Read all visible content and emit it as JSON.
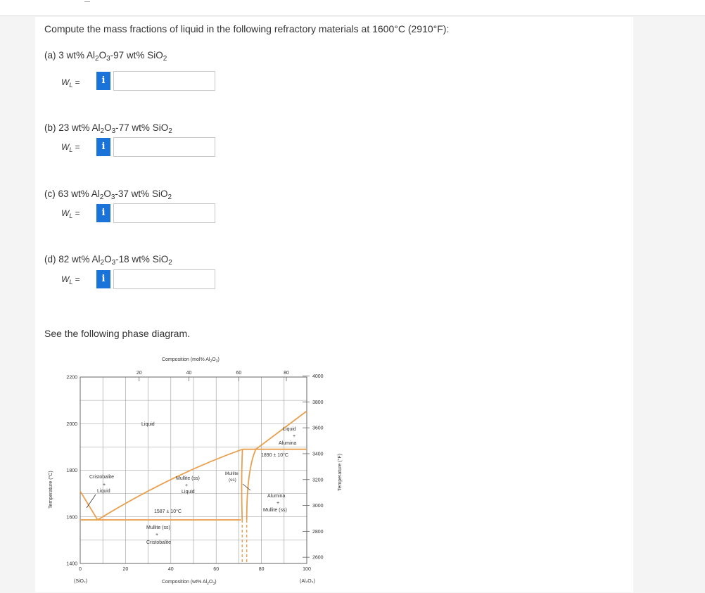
{
  "question": {
    "prompt": "Compute the mass fractions of liquid in the following refractory materials at 1600°C (2910°F):",
    "parts": [
      {
        "label": "(a) 3 wt% Al",
        "label2": "O",
        "label3": "-97 wt% SiO",
        "answer_var": "W",
        "answer_sub": "L",
        "answer_eq": " =",
        "input_value": ""
      },
      {
        "label": "(b) 23 wt% Al",
        "label2": "O",
        "label3": "-77 wt% SiO",
        "answer_var": "W",
        "answer_sub": "L",
        "answer_eq": " =",
        "input_value": ""
      },
      {
        "label": "(c) 63 wt% Al",
        "label2": "O",
        "label3": "-37 wt% SiO",
        "answer_var": "W",
        "answer_sub": "L",
        "answer_eq": " =",
        "input_value": ""
      },
      {
        "label": "(d) 82 wt% Al",
        "label2": "O",
        "label3": "-18 wt% SiO",
        "answer_var": "W",
        "answer_sub": "L",
        "answer_eq": " =",
        "input_value": ""
      }
    ],
    "info_icon": "i",
    "see_text": "See the following phase diagram."
  },
  "chart_data": {
    "type": "line",
    "title_top_prefix": "Composition (mol% Al",
    "title_top_suffix": "O",
    "title_top_end": ")",
    "xlabel_prefix": "Composition (wt% Al",
    "xlabel_suffix": "O",
    "xlabel_end": ")",
    "ylabel_left": "Temperature (°C)",
    "ylabel_right": "Temperature (°F)",
    "xlim": [
      0,
      100
    ],
    "ylim": [
      1400,
      2200
    ],
    "x_ticks": [
      "0",
      "20",
      "40",
      "60",
      "80",
      "100"
    ],
    "y_ticks_left": [
      "1400",
      "1600",
      "1800",
      "2000",
      "2200"
    ],
    "top_ticks": [
      "20",
      "40",
      "60",
      "80"
    ],
    "right_ticks": [
      "2600",
      "2800",
      "3000",
      "3200",
      "3400",
      "3600",
      "3800",
      "4000"
    ],
    "endpoint_left": "(SiO₂)",
    "endpoint_right": "(Al₂O₃)",
    "isotherms": [
      "1587 ± 10°C",
      "1890 ± 10°C"
    ],
    "region_labels": {
      "liquid": "Liquid",
      "cristobalite_liquid": [
        "Cristobalite",
        "+",
        "Liquid"
      ],
      "mullite_liquid": [
        "Mullite (ss)",
        "+",
        "Liquid"
      ],
      "mullite_ss": [
        "Mullite",
        "(ss)"
      ],
      "liquid_alumina": [
        "Liquid",
        "+",
        "Alumina"
      ],
      "alumina_mullite": [
        "Alumina",
        "+",
        "Mullite (ss)"
      ],
      "mullite_cristobalite": [
        "Mullite (ss)",
        "+",
        "Cristobalite"
      ]
    },
    "series": [
      {
        "values": [
          [
            0,
            1710
          ],
          [
            7.7,
            1587
          ]
        ]
      },
      {
        "values": [
          [
            7.7,
            1587
          ],
          [
            40,
            1740
          ],
          [
            71.6,
            1890
          ]
        ]
      },
      {
        "values": [
          [
            77.5,
            1890
          ],
          [
            100,
            2054
          ]
        ]
      }
    ],
    "colors": {
      "curve": "#e8a04f",
      "grid": "#9a9a9a",
      "dash": "#e8a04f"
    }
  }
}
